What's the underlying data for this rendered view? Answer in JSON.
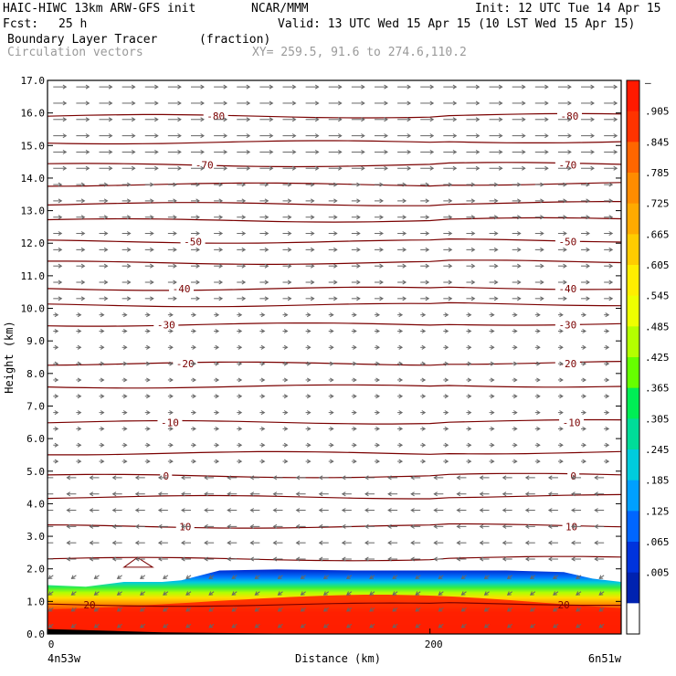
{
  "header": {
    "model": "HAIC-HIWC 13km ARW-GFS init",
    "org": "NCAR/MMM",
    "init": "Init: 12 UTC Tue 14 Apr 15",
    "fcst_label": "Fcst:",
    "fcst_value": "25 h",
    "valid": "Valid: 13 UTC Wed 15 Apr 15 (10 LST Wed 15 Apr 15)",
    "field1": "Boundary Layer Tracer",
    "field1_units": "(fraction)",
    "field2": "Circulation vectors",
    "xy": "XY= 259.5, 91.6 to 274.6,110.2"
  },
  "chart_data": {
    "type": "cross-section",
    "xlabel": "Distance (km)",
    "ylabel": "Height (km)",
    "xlim": [
      0,
      300
    ],
    "ylim": [
      0,
      17
    ],
    "x_tick_labels": [
      "0",
      "200"
    ],
    "x_end_labels": [
      "4n53w",
      "6n51w"
    ],
    "y_ticks": [
      0.0,
      1.0,
      2.0,
      3.0,
      4.0,
      5.0,
      6.0,
      7.0,
      8.0,
      9.0,
      10.0,
      11.0,
      12.0,
      13.0,
      14.0,
      15.0,
      16.0,
      17.0
    ],
    "y_tick_labels": [
      "0.0",
      "1.0",
      "2.0",
      "3.0",
      "4.0",
      "5.0",
      "6.0",
      "7.0",
      "8.0",
      "9.0",
      "10.0",
      "11.0",
      "12.0",
      "13.0",
      "14.0",
      "15.0",
      "16.0",
      "17.0"
    ],
    "colorbar": {
      "labels": [
        "–",
        ".905",
        ".845",
        ".785",
        ".725",
        ".665",
        ".605",
        ".545",
        ".485",
        ".425",
        ".365",
        ".305",
        ".245",
        ".185",
        ".125",
        ".065",
        ".005"
      ],
      "colors": [
        "#ff1a00",
        "#ff3300",
        "#ff6600",
        "#ff8c00",
        "#ffaa00",
        "#ffcc00",
        "#ffee00",
        "#eeff00",
        "#b4ff00",
        "#66ff00",
        "#00ee55",
        "#00dd99",
        "#00ccdd",
        "#00a0ff",
        "#0066ff",
        "#0033dd",
        "#0022b0",
        "#ffffff"
      ]
    },
    "temperature_contours": [
      {
        "label": "-80",
        "height_km": 15.9
      },
      {
        "label": "-70",
        "height_km": 14.4
      },
      {
        "label": "-50",
        "height_km": 12.05
      },
      {
        "label": "-40",
        "height_km": 10.6
      },
      {
        "label": "-30",
        "height_km": 9.5
      },
      {
        "label": "-20",
        "height_km": 8.3
      },
      {
        "label": "-10",
        "height_km": 6.5
      },
      {
        "label": "0",
        "height_km": 4.85
      },
      {
        "label": "10",
        "height_km": 3.3
      },
      {
        "label": "20",
        "height_km": 0.9
      }
    ],
    "unlabeled_contour_heights_km": [
      15.1,
      13.8,
      13.2,
      12.7,
      11.4,
      10.1,
      7.6,
      5.55,
      4.2,
      2.3
    ],
    "bl_tracer_top_km": [
      [
        0,
        1.5
      ],
      [
        20,
        1.45
      ],
      [
        40,
        1.6
      ],
      [
        60,
        1.6
      ],
      [
        70,
        1.65
      ],
      [
        90,
        1.95
      ],
      [
        120,
        1.98
      ],
      [
        160,
        1.95
      ],
      [
        200,
        1.95
      ],
      [
        240,
        1.95
      ],
      [
        270,
        1.9
      ],
      [
        285,
        1.7
      ],
      [
        300,
        1.6
      ]
    ],
    "wind_field": {
      "upper_direction": "west-to-east",
      "lower_direction": "east-to-west",
      "reversal_height_km": 5.0
    }
  }
}
